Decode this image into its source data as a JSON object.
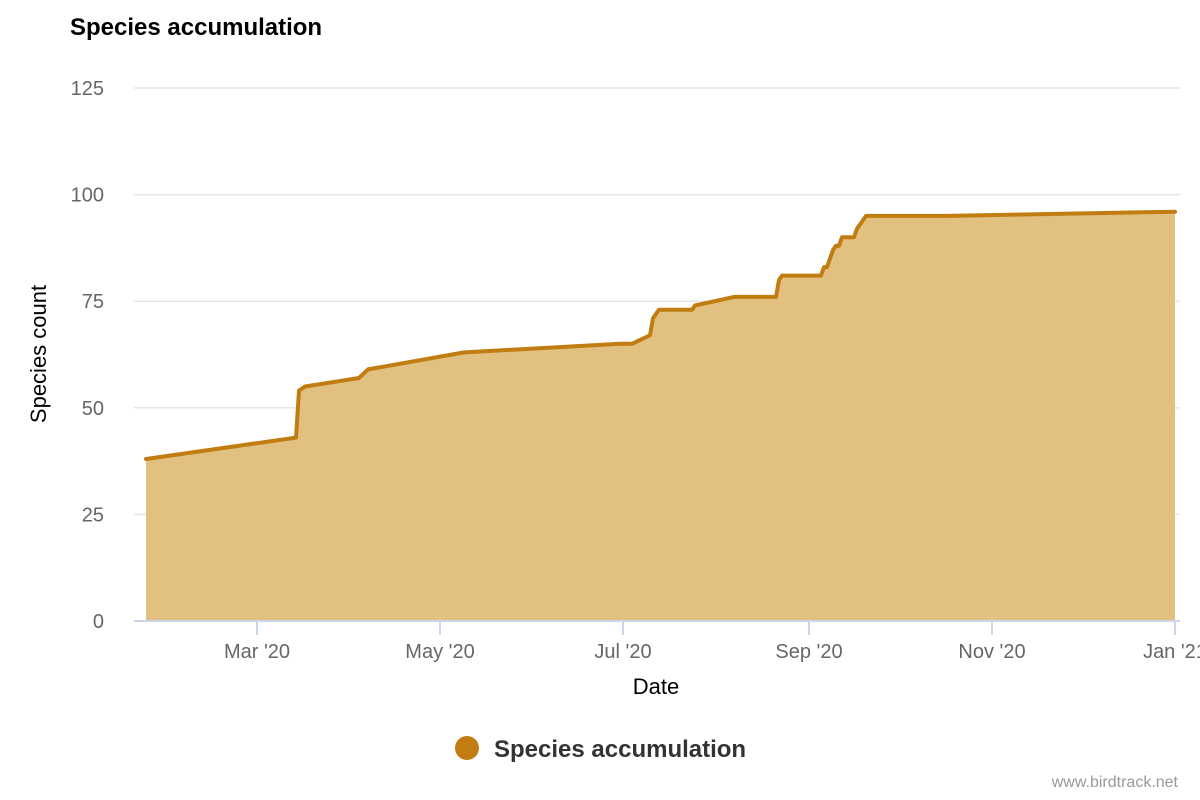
{
  "chart_data": {
    "type": "area",
    "title": "Species accumulation",
    "xlabel": "Date",
    "ylabel": "Species count",
    "ylim": [
      0,
      125
    ],
    "yticks": [
      "0",
      "25",
      "50",
      "75",
      "100",
      "125"
    ],
    "xticks": [
      {
        "date": "2020-03-01",
        "label": "Mar '20"
      },
      {
        "date": "2020-05-01",
        "label": "May '20"
      },
      {
        "date": "2020-07-01",
        "label": "Jul '20"
      },
      {
        "date": "2020-09-01",
        "label": "Sep '20"
      },
      {
        "date": "2020-11-01",
        "label": "Nov '20"
      },
      {
        "date": "2021-01-01",
        "label": "Jan '21"
      }
    ],
    "xlim": [
      "2020-01-20",
      "2021-01-02"
    ],
    "grid": true,
    "legend_position": "bottom-center",
    "color": "#C17D11",
    "fill_color": "#E1C080",
    "series": [
      {
        "name": "Species accumulation",
        "points": [
          {
            "x": "2020-01-24",
            "y": 38
          },
          {
            "x": "2020-03-14",
            "y": 43
          },
          {
            "x": "2020-03-15",
            "y": 54
          },
          {
            "x": "2020-03-17",
            "y": 55
          },
          {
            "x": "2020-04-04",
            "y": 57
          },
          {
            "x": "2020-04-07",
            "y": 59
          },
          {
            "x": "2020-05-09",
            "y": 63
          },
          {
            "x": "2020-06-30",
            "y": 65
          },
          {
            "x": "2020-07-04",
            "y": 65
          },
          {
            "x": "2020-07-10",
            "y": 67
          },
          {
            "x": "2020-07-11",
            "y": 71
          },
          {
            "x": "2020-07-13",
            "y": 73
          },
          {
            "x": "2020-07-24",
            "y": 73
          },
          {
            "x": "2020-07-25",
            "y": 74
          },
          {
            "x": "2020-08-07",
            "y": 76
          },
          {
            "x": "2020-08-21",
            "y": 76
          },
          {
            "x": "2020-08-22",
            "y": 80
          },
          {
            "x": "2020-08-23",
            "y": 81
          },
          {
            "x": "2020-09-05",
            "y": 81
          },
          {
            "x": "2020-09-06",
            "y": 83
          },
          {
            "x": "2020-09-07",
            "y": 83
          },
          {
            "x": "2020-09-09",
            "y": 87
          },
          {
            "x": "2020-09-10",
            "y": 88
          },
          {
            "x": "2020-09-11",
            "y": 88
          },
          {
            "x": "2020-09-12",
            "y": 90
          },
          {
            "x": "2020-09-16",
            "y": 90
          },
          {
            "x": "2020-09-17",
            "y": 92
          },
          {
            "x": "2020-09-20",
            "y": 95
          },
          {
            "x": "2020-10-17",
            "y": 95
          },
          {
            "x": "2021-01-01",
            "y": 96
          }
        ]
      }
    ]
  },
  "credit": "www.birdtrack.net"
}
